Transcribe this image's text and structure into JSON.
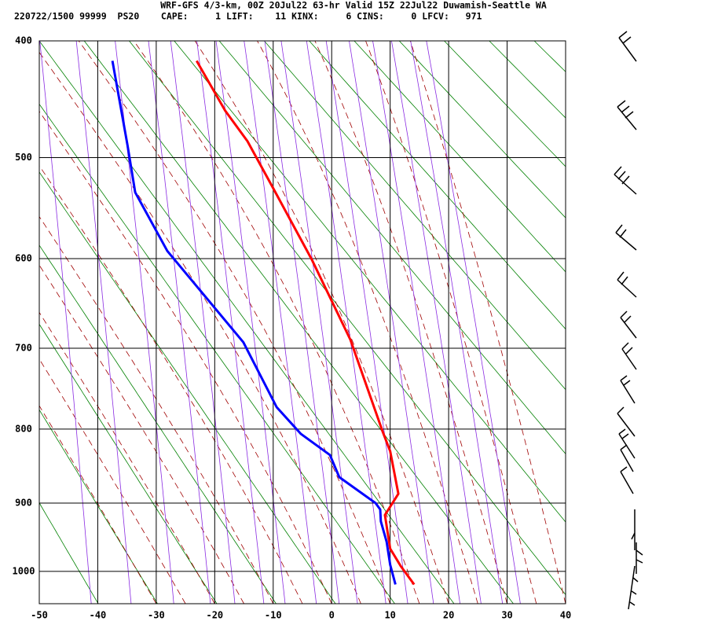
{
  "chart_data": {
    "type": "line",
    "title": "WRF-GFS 4/3-km, 00Z 20Jul22 63-hr Valid 15Z 22Jul22 Duwamish-Seattle WA",
    "subtitle": "220722/1500 99999  PS20    CAPE:     1 LIFT:    11 KINX:     6 CINS:     0 LFCV:   971",
    "xlim": [
      -50,
      40
    ],
    "xticks": [
      -50,
      -40,
      -30,
      -20,
      -10,
      0,
      10,
      20,
      30,
      40
    ],
    "ylim": [
      1050,
      400
    ],
    "yticks": [
      400,
      500,
      600,
      700,
      800,
      900,
      1000
    ],
    "grid": true,
    "series": [
      {
        "color": "#ff0000",
        "x": [
          14.1,
          11.8,
          10.0,
          9.1,
          11.4,
          10.0,
          8.7,
          3.2,
          -3.4,
          -10.0,
          -14.4,
          -18.2,
          -23.1
        ],
        "values": [
          1020,
          992,
          966,
          917,
          887,
          829,
          803,
          690,
          601,
          529,
          485,
          458,
          416
        ]
      },
      {
        "color": "#0000ff",
        "x": [
          10.9,
          10.0,
          9.4,
          8.4,
          8.3,
          7.5,
          1.3,
          -0.3,
          -5.3,
          -9.4,
          -15.1,
          -28.1,
          -33.6,
          -34.9,
          -37.5
        ],
        "values": [
          1020,
          990,
          956,
          926,
          909,
          900,
          864,
          834,
          806,
          772,
          693,
          592,
          533,
          489,
          416
        ]
      }
    ]
  }
}
